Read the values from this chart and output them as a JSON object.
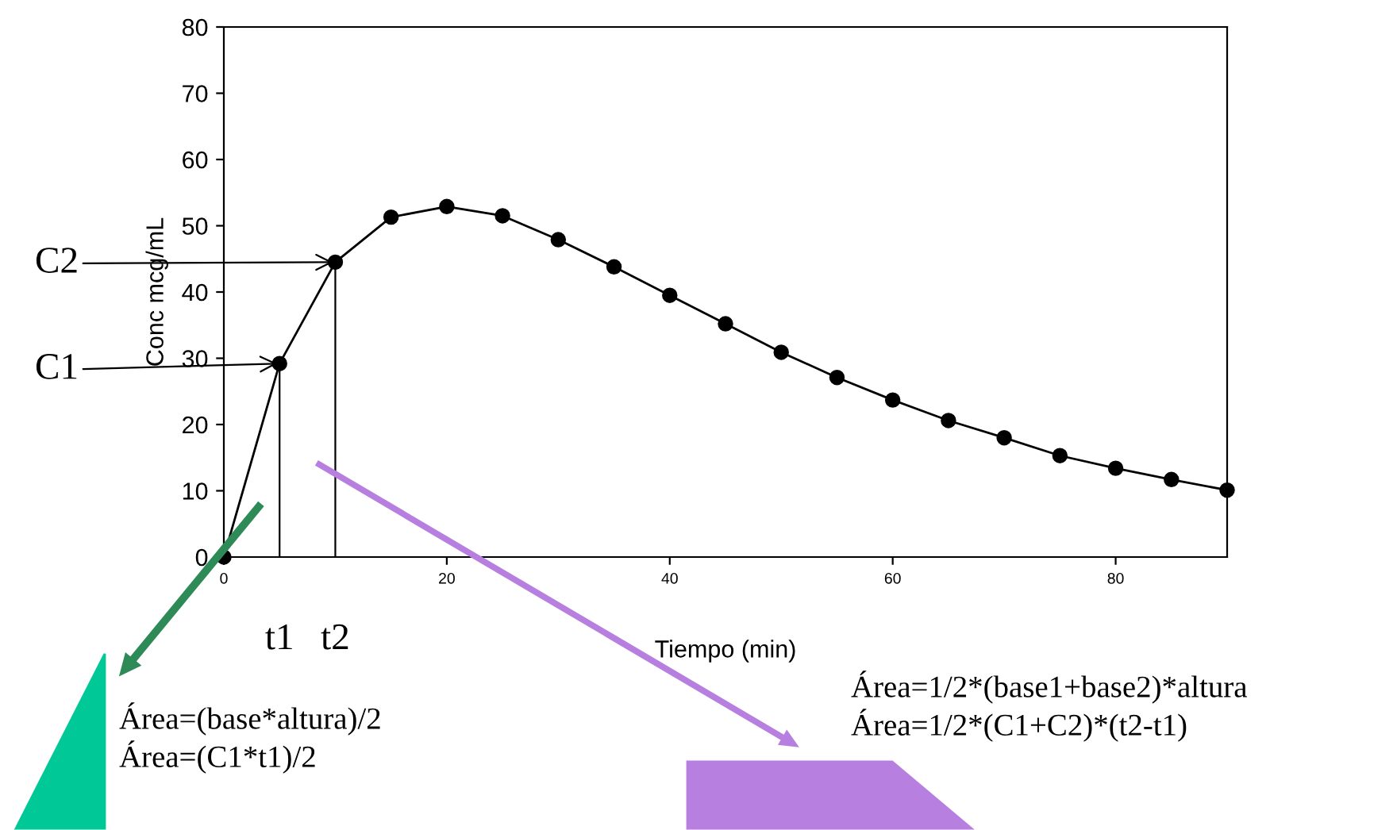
{
  "chart_data": {
    "type": "line",
    "xlabel": "Tiempo (min)",
    "ylabel": "Conc mcg/mL",
    "x": [
      0,
      5,
      10,
      15,
      20,
      25,
      30,
      35,
      40,
      45,
      50,
      55,
      60,
      65,
      70,
      75,
      80,
      85,
      90
    ],
    "series": [
      {
        "color": "#000000",
        "values": [
          0,
          29.2,
          44.5,
          51.3,
          52.9,
          51.5,
          47.9,
          43.8,
          39.5,
          35.2,
          30.9,
          27.1,
          23.7,
          20.6,
          18,
          15.3,
          13.4,
          11.7,
          10.1
        ]
      }
    ],
    "xlim": [
      0,
      90
    ],
    "xticks": [
      0,
      20,
      40,
      60,
      80
    ],
    "ylim": [
      0,
      80
    ],
    "yticks": [
      0,
      10,
      20,
      30,
      40,
      50,
      60,
      70,
      80
    ],
    "marker": "circle",
    "line_style": "solid",
    "grid": false,
    "ref_lines": [
      {
        "axis": "x",
        "value": 5,
        "label": "t1"
      },
      {
        "axis": "x",
        "value": 10,
        "label": "t2"
      }
    ],
    "annotations": [
      {
        "text": "C1",
        "x": 5,
        "y": 29.2
      },
      {
        "text": "C2",
        "x": 10,
        "y": 44.5
      },
      "Área=(base*altura)/2\nÁrea=(C1*t1)/2",
      "Área=1/2*(base1+base2)*altura\nÁrea=1/2*(C1+C2)*(t2-t1)"
    ]
  }
}
